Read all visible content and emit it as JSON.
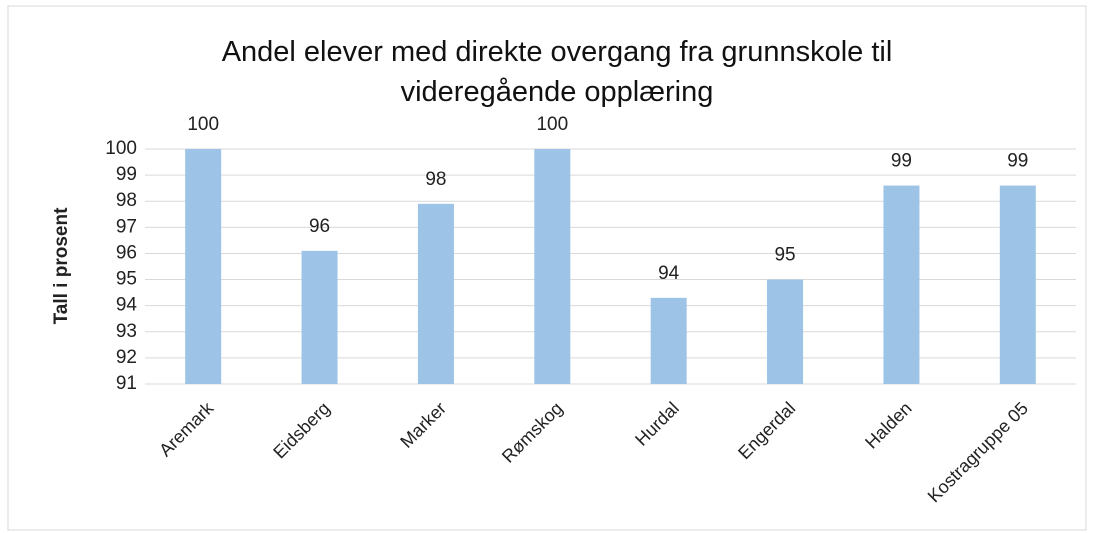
{
  "chart_data": {
    "type": "bar",
    "title": "Andel elever med direkte overgang fra grunnskole til videregående opplæring",
    "y_label": "Tall i prosent",
    "categories": [
      "Aremark",
      "Eidsberg",
      "Marker",
      "Rømskog",
      "Hurdal",
      "Engerdal",
      "Halden",
      "Kostragruppe 05"
    ],
    "values": [
      100,
      96.1,
      97.9,
      100,
      94.3,
      95.0,
      98.6,
      98.6
    ],
    "value_labels": [
      "100",
      "96",
      "98",
      "100",
      "94",
      "95",
      "99",
      "99"
    ],
    "color": "#9dc3e6",
    "ylim": [
      91,
      100
    ],
    "yticks": [
      91,
      92,
      93,
      94,
      95,
      96,
      97,
      98,
      99,
      100
    ],
    "grid": true
  }
}
